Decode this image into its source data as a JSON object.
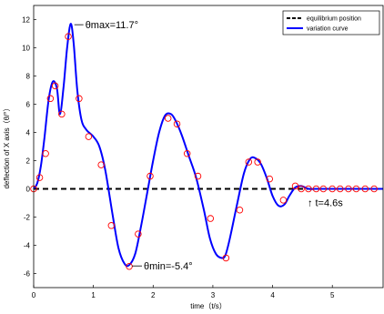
{
  "chart_data": {
    "type": "line",
    "xlabel": "time（t/s）",
    "ylabel": "deflection of X axis（θ/°）",
    "xlim": [
      0,
      5.85
    ],
    "ylim": [
      -7,
      13
    ],
    "xticks": [
      0,
      1,
      2,
      3,
      4,
      5
    ],
    "yticks": [
      -6,
      -4,
      -2,
      0,
      2,
      4,
      6,
      8,
      10,
      12
    ],
    "grid": false,
    "legend_position": "top-right",
    "series": [
      {
        "name": "equilibrium position",
        "style": "dashed",
        "color": "#000000",
        "x": [
          0,
          5.85
        ],
        "y": [
          0,
          0
        ]
      },
      {
        "name": "variation curve",
        "style": "solid",
        "color": "#0000ff",
        "x": [
          0,
          0.06,
          0.12,
          0.18,
          0.25,
          0.32,
          0.39,
          0.44,
          0.5,
          0.56,
          0.62,
          0.67,
          0.73,
          0.8,
          0.88,
          1.0,
          1.1,
          1.2,
          1.32,
          1.42,
          1.52,
          1.6,
          1.7,
          1.8,
          1.9,
          2.0,
          2.1,
          2.2,
          2.3,
          2.38,
          2.48,
          2.6,
          2.72,
          2.85,
          2.95,
          3.05,
          3.15,
          3.21,
          3.28,
          3.4,
          3.52,
          3.62,
          3.7,
          3.8,
          3.9,
          4.0,
          4.1,
          4.2,
          4.28,
          4.38,
          4.48,
          4.6,
          4.72,
          4.85,
          5.0,
          5.3,
          5.6,
          5.85
        ],
        "y": [
          0,
          0.4,
          1.6,
          3.6,
          6.3,
          7.6,
          7.1,
          5.3,
          7.2,
          10.0,
          11.7,
          10.3,
          7.0,
          4.9,
          4.2,
          3.7,
          3.0,
          1.3,
          -1.8,
          -4.2,
          -5.3,
          -5.4,
          -4.6,
          -2.6,
          -0.3,
          2.0,
          4.0,
          5.2,
          5.3,
          4.8,
          3.8,
          2.3,
          0.8,
          -1.5,
          -3.5,
          -4.6,
          -4.9,
          -4.7,
          -3.6,
          -1.2,
          1.1,
          2.1,
          2.2,
          1.8,
          0.8,
          -0.5,
          -1.2,
          -1.1,
          -0.5,
          0.1,
          0.2,
          0,
          0,
          0,
          0,
          0,
          0,
          0
        ]
      }
    ],
    "markers": {
      "shape": "circle",
      "color": "#ff0000",
      "x": [
        0,
        0.1,
        0.2,
        0.28,
        0.36,
        0.47,
        0.58,
        0.76,
        0.92,
        1.13,
        1.3,
        1.6,
        1.75,
        1.95,
        2.25,
        2.4,
        2.57,
        2.75,
        2.96,
        3.22,
        3.45,
        3.6,
        3.75,
        3.95,
        4.18,
        4.38,
        4.48,
        4.6,
        4.73,
        4.85,
        5.0,
        5.13,
        5.27,
        5.4,
        5.55,
        5.7
      ],
      "y": [
        0,
        0.8,
        2.5,
        6.4,
        7.3,
        5.3,
        10.8,
        6.4,
        3.7,
        1.7,
        -2.6,
        -5.5,
        -3.2,
        0.9,
        5.0,
        4.6,
        2.5,
        0.9,
        -2.1,
        -4.9,
        -1.5,
        1.9,
        1.9,
        0.7,
        -0.8,
        0.2,
        0,
        0,
        0,
        0,
        0,
        0,
        0,
        0,
        0,
        0
      ]
    },
    "annotations": [
      {
        "text": "θmax=11.7°",
        "x": 0.62,
        "y": 11.7
      },
      {
        "text": "θmin=-5.4°",
        "x": 1.6,
        "y": -5.4
      },
      {
        "text": "↑ t=4.6s",
        "x": 4.6,
        "y": 0
      }
    ]
  }
}
